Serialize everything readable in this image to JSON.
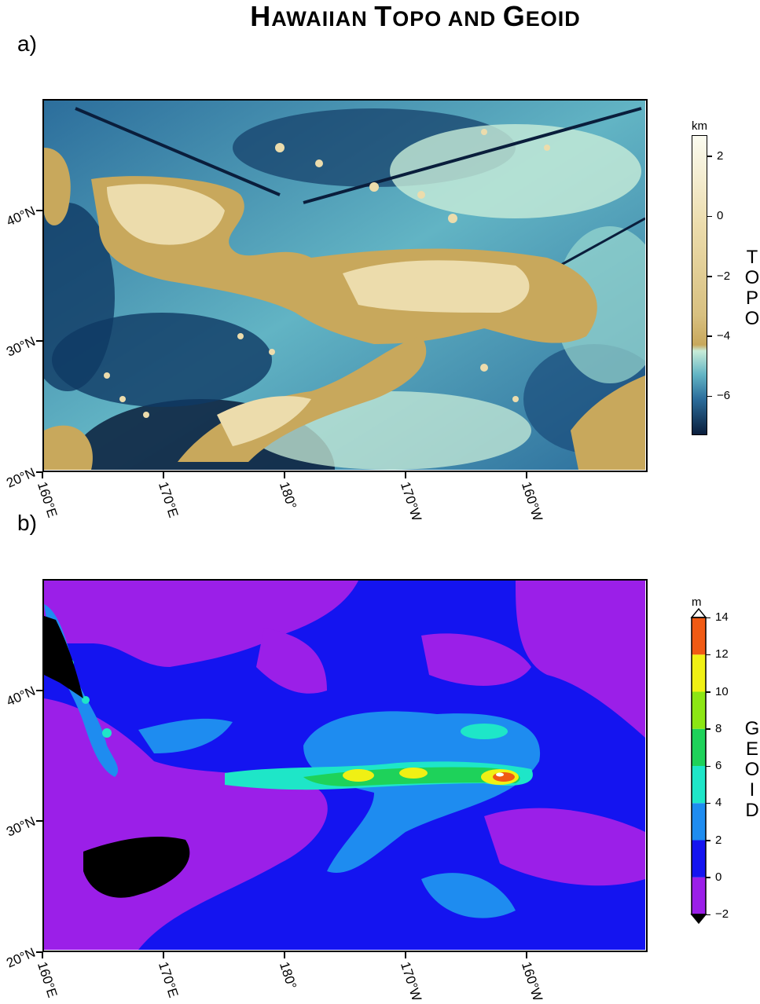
{
  "title": {
    "part1_cap": "H",
    "part1_rest": "AWAIIAN ",
    "part2_cap": "T",
    "part2_rest": "OPO AND ",
    "part3_cap": "G",
    "part3_rest": "EOID"
  },
  "panels": [
    {
      "label": "a)",
      "colorbar": {
        "unit": "km",
        "title_letters": [
          "T",
          "O",
          "P",
          "O"
        ],
        "ticks": [
          "2",
          "0",
          "−2",
          "−4",
          "−6"
        ],
        "tick_values": [
          2,
          0,
          -2,
          -4,
          -6
        ],
        "range": [
          -7.3,
          2.7
        ],
        "colors": {
          "deep": "#0a1e3c",
          "blue": "#2c6e9c",
          "teal": "#62b4c4",
          "pale_green": "#c8ecd8",
          "tan": "#c8a85c",
          "light_tan": "#ecdcac",
          "white": "#fbfbf0"
        }
      }
    },
    {
      "label": "b)",
      "colorbar": {
        "unit": "m",
        "title_letters": [
          "G",
          "E",
          "O",
          "I",
          "D"
        ],
        "ticks": [
          "14",
          "12",
          "10",
          "8",
          "6",
          "4",
          "2",
          "0",
          "−2"
        ],
        "tick_values": [
          14,
          12,
          10,
          8,
          6,
          4,
          2,
          0,
          -2
        ],
        "range": [
          -2,
          14
        ],
        "bands": [
          {
            "from": -2,
            "to": 0,
            "color": "#9b1fe8"
          },
          {
            "from": 0,
            "to": 2,
            "color": "#1414f0"
          },
          {
            "from": 2,
            "to": 4,
            "color": "#1e8cf0"
          },
          {
            "from": 4,
            "to": 6,
            "color": "#1ee6c8"
          },
          {
            "from": 6,
            "to": 8,
            "color": "#1ed25a"
          },
          {
            "from": 8,
            "to": 10,
            "color": "#8ce614"
          },
          {
            "from": 10,
            "to": 12,
            "color": "#f0f014"
          },
          {
            "from": 12,
            "to": 14,
            "color": "#f05a14"
          }
        ]
      }
    }
  ],
  "axes": {
    "y_ticks": [
      "20°N",
      "30°N",
      "40°N"
    ],
    "y_values": [
      20,
      30,
      40
    ],
    "x_ticks": [
      "160°E",
      "170°E",
      "180°",
      "170°W",
      "160°W"
    ],
    "x_values": [
      160,
      170,
      180,
      190,
      200
    ],
    "lon_range": [
      160,
      210
    ],
    "lat_range": [
      20,
      48.5
    ]
  }
}
